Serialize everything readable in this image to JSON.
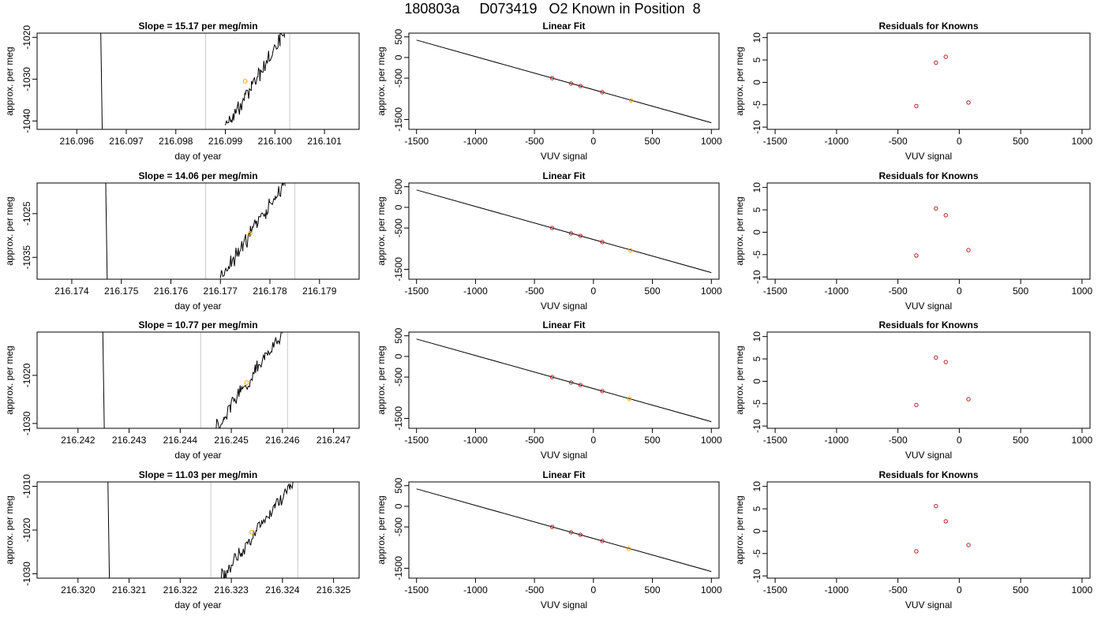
{
  "page_title": "180803a     D073419   O2 Known in Position  8",
  "colors": {
    "trace": "#000000",
    "vertical_marker": "#c8c8c8",
    "highlight_point": "#ffa500",
    "known_point": "#b22222",
    "fit_line": "#000000"
  },
  "chart_data": [
    {
      "type": "line",
      "title": "Slope =  15.17  per meg/min",
      "xlabel": "day of year",
      "ylabel": "approx. per meg",
      "xlim": [
        216.0952,
        216.1017
      ],
      "ylim": [
        -1042,
        -1019
      ],
      "xticks": [
        216.096,
        216.097,
        216.098,
        216.099,
        216.1,
        216.101
      ],
      "xtick_labels": [
        "216.096",
        "216.097",
        "216.098",
        "216.099",
        "216.100",
        "216.101"
      ],
      "yticks": [
        -1040,
        -1030,
        -1020
      ],
      "ytick_labels": [
        "-1040",
        "-1030",
        "-1020"
      ],
      "vertical_markers": [
        216.0986,
        216.1003
      ],
      "spike_x": 216.0965,
      "ramp": {
        "x0": 216.099,
        "y0": -1042,
        "x1": 216.1002,
        "y1": -1019
      },
      "highlight": {
        "x": 216.0994,
        "y": -1030.5
      }
    },
    {
      "type": "scatter",
      "title": "Linear Fit",
      "xlabel": "VUV signal",
      "ylabel": "approx. per meg",
      "xlim": [
        -1565,
        1065
      ],
      "ylim": [
        -1740,
        590
      ],
      "xticks": [
        -1500,
        -1000,
        -500,
        0,
        500,
        1000
      ],
      "xtick_labels": [
        "-1500",
        "-1000",
        "-500",
        "0",
        "500",
        "1000"
      ],
      "yticks": [
        500,
        0,
        -500,
        -1500
      ],
      "ytick_labels": [
        "500",
        "0",
        "-500",
        "-1500"
      ],
      "fit_line": {
        "x": [
          -1500,
          1000
        ],
        "y": [
          422,
          -1580
        ]
      },
      "points": [
        {
          "x": -350,
          "y": -500
        },
        {
          "x": -190,
          "y": -630
        },
        {
          "x": -110,
          "y": -690
        },
        {
          "x": 75,
          "y": -840
        }
      ],
      "highlight": {
        "x": 320,
        "y": -1040
      }
    },
    {
      "type": "scatter",
      "title": "Residuals for Knowns",
      "xlabel": "VUV signal",
      "ylabel": "approx. per meg",
      "xlim": [
        -1565,
        1065
      ],
      "ylim": [
        -10.5,
        11
      ],
      "xticks": [
        -1500,
        -1000,
        -500,
        0,
        500,
        1000
      ],
      "xtick_labels": [
        "-1500",
        "-1000",
        "-500",
        "0",
        "500",
        "1000"
      ],
      "yticks": [
        -10,
        -5,
        0,
        5,
        10
      ],
      "ytick_labels": [
        "-10",
        "-5",
        "0",
        "5",
        "10"
      ],
      "points": [
        {
          "x": -350,
          "y": -5.3
        },
        {
          "x": -190,
          "y": 4.4
        },
        {
          "x": -110,
          "y": 5.7
        },
        {
          "x": 75,
          "y": -4.5
        }
      ]
    },
    {
      "type": "line",
      "title": "Slope =  14.06  per meg/min",
      "xlabel": "day of year",
      "ylabel": "approx. per meg",
      "xlim": [
        216.1733,
        216.1798
      ],
      "ylim": [
        -1040,
        -1018
      ],
      "xticks": [
        216.174,
        216.175,
        216.176,
        216.177,
        216.178,
        216.179
      ],
      "xtick_labels": [
        "216.174",
        "216.175",
        "216.176",
        "216.177",
        "216.178",
        "216.179"
      ],
      "yticks": [
        -1035,
        -1025
      ],
      "ytick_labels": [
        "-1035",
        "-1025"
      ],
      "vertical_markers": [
        216.1767,
        216.1785
      ],
      "spike_x": 216.1747,
      "ramp": {
        "x0": 216.177,
        "y0": -1040,
        "x1": 216.1783,
        "y1": -1018
      },
      "highlight": {
        "x": 216.1776,
        "y": -1029.5
      }
    },
    {
      "type": "scatter",
      "title": "Linear Fit",
      "xlabel": "VUV signal",
      "ylabel": "approx. per meg",
      "xlim": [
        -1565,
        1065
      ],
      "ylim": [
        -1740,
        590
      ],
      "xticks": [
        -1500,
        -1000,
        -500,
        0,
        500,
        1000
      ],
      "xtick_labels": [
        "-1500",
        "-1000",
        "-500",
        "0",
        "500",
        "1000"
      ],
      "yticks": [
        500,
        0,
        -500,
        -1500
      ],
      "ytick_labels": [
        "500",
        "0",
        "-500",
        "-1500"
      ],
      "fit_line": {
        "x": [
          -1500,
          1000
        ],
        "y": [
          422,
          -1580
        ]
      },
      "points": [
        {
          "x": -350,
          "y": -500
        },
        {
          "x": -190,
          "y": -630
        },
        {
          "x": -110,
          "y": -690
        },
        {
          "x": 75,
          "y": -840
        }
      ],
      "highlight": {
        "x": 315,
        "y": -1040
      }
    },
    {
      "type": "scatter",
      "title": "Residuals for Knowns",
      "xlabel": "VUV signal",
      "ylabel": "approx. per meg",
      "xlim": [
        -1565,
        1065
      ],
      "ylim": [
        -10.5,
        11
      ],
      "xticks": [
        -1500,
        -1000,
        -500,
        0,
        500,
        1000
      ],
      "xtick_labels": [
        "-1500",
        "-1000",
        "-500",
        "0",
        "500",
        "1000"
      ],
      "yticks": [
        -10,
        -5,
        0,
        5,
        10
      ],
      "ytick_labels": [
        "-10",
        "-5",
        "0",
        "5",
        "10"
      ],
      "points": [
        {
          "x": -350,
          "y": -5.2
        },
        {
          "x": -190,
          "y": 5.3
        },
        {
          "x": -110,
          "y": 3.8
        },
        {
          "x": 75,
          "y": -4.0
        }
      ]
    },
    {
      "type": "line",
      "title": "Slope =  10.77  per meg/min",
      "xlabel": "day of year",
      "ylabel": "approx. per meg",
      "xlim": [
        216.2412,
        216.2475
      ],
      "ylim": [
        -1031,
        -1011
      ],
      "xticks": [
        216.242,
        216.243,
        216.244,
        216.245,
        216.246,
        216.247
      ],
      "xtick_labels": [
        "216.242",
        "216.243",
        "216.244",
        "216.245",
        "216.246",
        "216.247"
      ],
      "yticks": [
        -1030,
        -1020
      ],
      "ytick_labels": [
        "-1030",
        "-1020"
      ],
      "vertical_markers": [
        216.2444,
        216.2461
      ],
      "spike_x": 216.2425,
      "ramp": {
        "x0": 216.2447,
        "y0": -1031,
        "x1": 216.246,
        "y1": -1011
      },
      "highlight": {
        "x": 216.2453,
        "y": -1021.5
      }
    },
    {
      "type": "scatter",
      "title": "Linear Fit",
      "xlabel": "VUV signal",
      "ylabel": "approx. per meg",
      "xlim": [
        -1565,
        1065
      ],
      "ylim": [
        -1740,
        590
      ],
      "xticks": [
        -1500,
        -1000,
        -500,
        0,
        500,
        1000
      ],
      "xtick_labels": [
        "-1500",
        "-1000",
        "-500",
        "0",
        "500",
        "1000"
      ],
      "yticks": [
        500,
        0,
        -500,
        -1500
      ],
      "ytick_labels": [
        "500",
        "0",
        "-500",
        "-1500"
      ],
      "fit_line": {
        "x": [
          -1500,
          1000
        ],
        "y": [
          422,
          -1580
        ]
      },
      "points": [
        {
          "x": -350,
          "y": -500
        },
        {
          "x": -190,
          "y": -630
        },
        {
          "x": -110,
          "y": -690
        },
        {
          "x": 75,
          "y": -840
        }
      ],
      "highlight": {
        "x": 305,
        "y": -1030
      }
    },
    {
      "type": "scatter",
      "title": "Residuals for Knowns",
      "xlabel": "VUV signal",
      "ylabel": "approx. per meg",
      "xlim": [
        -1565,
        1065
      ],
      "ylim": [
        -10.5,
        11
      ],
      "xticks": [
        -1500,
        -1000,
        -500,
        0,
        500,
        1000
      ],
      "xtick_labels": [
        "-1500",
        "-1000",
        "-500",
        "0",
        "500",
        "1000"
      ],
      "yticks": [
        -10,
        -5,
        0,
        5,
        10
      ],
      "ytick_labels": [
        "-10",
        "-5",
        "0",
        "5",
        "10"
      ],
      "points": [
        {
          "x": -350,
          "y": -5.3
        },
        {
          "x": -190,
          "y": 5.3
        },
        {
          "x": -110,
          "y": 4.3
        },
        {
          "x": 75,
          "y": -4.0
        }
      ]
    },
    {
      "type": "line",
      "title": "Slope =  11.03  per meg/min",
      "xlabel": "day of year",
      "ylabel": "approx. per meg",
      "xlim": [
        216.3192,
        216.3255
      ],
      "ylim": [
        -1031,
        -1009
      ],
      "xticks": [
        216.32,
        216.321,
        216.322,
        216.323,
        216.324,
        216.325
      ],
      "xtick_labels": [
        "216.320",
        "216.321",
        "216.322",
        "216.323",
        "216.324",
        "216.325"
      ],
      "yticks": [
        -1030,
        -1020,
        -1010
      ],
      "ytick_labels": [
        "-1030",
        "-1020",
        "-1010"
      ],
      "vertical_markers": [
        216.3226,
        216.3243
      ],
      "spike_x": 216.3206,
      "ramp": {
        "x0": 216.3228,
        "y0": -1031,
        "x1": 216.3242,
        "y1": -1009
      },
      "highlight": {
        "x": 216.3234,
        "y": -1020.5
      }
    },
    {
      "type": "scatter",
      "title": "Linear Fit",
      "xlabel": "VUV signal",
      "ylabel": "approx. per meg",
      "xlim": [
        -1565,
        1065
      ],
      "ylim": [
        -1740,
        590
      ],
      "xticks": [
        -1500,
        -1000,
        -500,
        0,
        500,
        1000
      ],
      "xtick_labels": [
        "-1500",
        "-1000",
        "-500",
        "0",
        "500",
        "1000"
      ],
      "yticks": [
        500,
        0,
        -500,
        -1500
      ],
      "ytick_labels": [
        "500",
        "0",
        "-500",
        "-1500"
      ],
      "fit_line": {
        "x": [
          -1500,
          1000
        ],
        "y": [
          422,
          -1580
        ]
      },
      "points": [
        {
          "x": -350,
          "y": -500
        },
        {
          "x": -190,
          "y": -630
        },
        {
          "x": -110,
          "y": -690
        },
        {
          "x": 75,
          "y": -840
        }
      ],
      "highlight": {
        "x": 300,
        "y": -1030
      }
    },
    {
      "type": "scatter",
      "title": "Residuals for Knowns",
      "xlabel": "VUV signal",
      "ylabel": "approx. per meg",
      "xlim": [
        -1565,
        1065
      ],
      "ylim": [
        -10.5,
        11
      ],
      "xticks": [
        -1500,
        -1000,
        -500,
        0,
        500,
        1000
      ],
      "xtick_labels": [
        "-1500",
        "-1000",
        "-500",
        "0",
        "500",
        "1000"
      ],
      "yticks": [
        -10,
        -5,
        0,
        5,
        10
      ],
      "ytick_labels": [
        "-10",
        "-5",
        "0",
        "5",
        "10"
      ],
      "points": [
        {
          "x": -350,
          "y": -4.5
        },
        {
          "x": -190,
          "y": 5.6
        },
        {
          "x": -110,
          "y": 2.2
        },
        {
          "x": 75,
          "y": -3.1
        }
      ]
    }
  ]
}
